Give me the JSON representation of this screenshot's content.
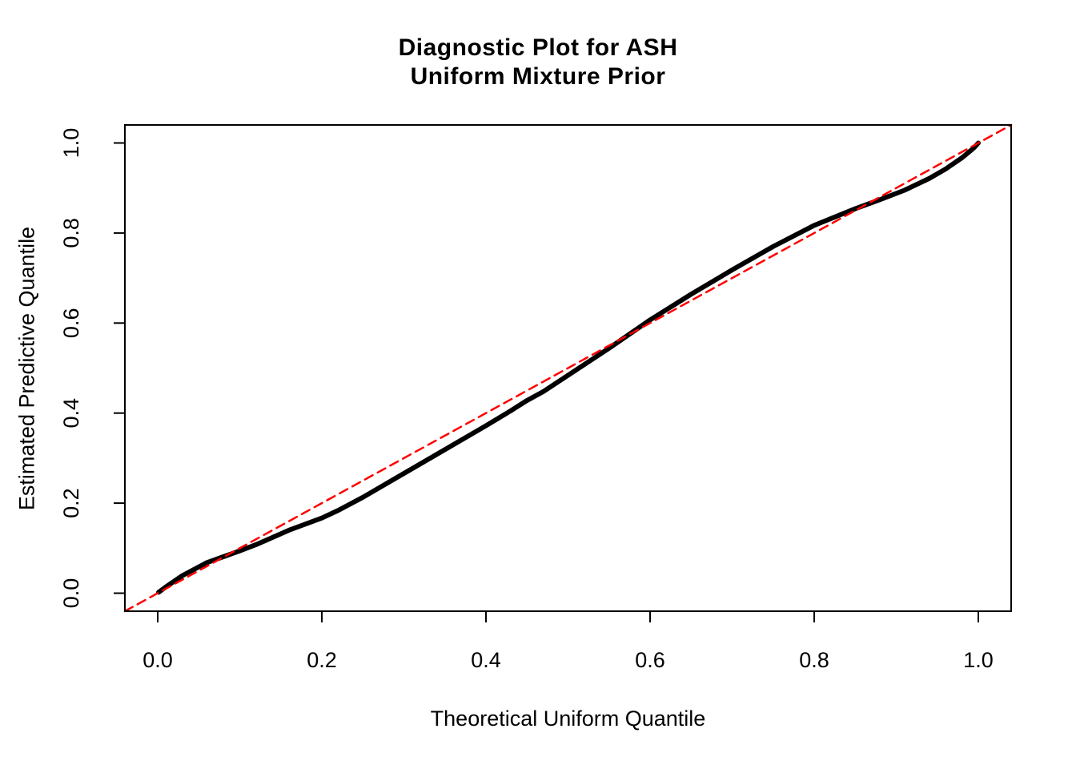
{
  "title": {
    "line1": "Diagnostic Plot for ASH",
    "line2": "Uniform Mixture Prior"
  },
  "colors": {
    "background": "#FFFFFF",
    "curve": "#000000",
    "reference_line": "#FF0000",
    "axis": "#000000",
    "text": "#000000"
  },
  "chart_data": {
    "type": "line",
    "title_line1": "Diagnostic Plot for ASH",
    "title_line2": "Uniform Mixture Prior",
    "xlabel": "Theoretical Uniform Quantile",
    "ylabel": "Estimated Predictive Quantile",
    "xlim": [
      -0.04,
      1.04
    ],
    "ylim": [
      -0.04,
      1.04
    ],
    "grid": false,
    "legend": null,
    "x_ticks": {
      "values": [
        0,
        0.2,
        0.4,
        0.6,
        0.8,
        1.0
      ],
      "labels": [
        "0.0",
        "0.2",
        "0.4",
        "0.6",
        "0.8",
        "1.0"
      ]
    },
    "y_ticks": {
      "values": [
        0,
        0.2,
        0.4,
        0.6,
        0.8,
        1.0
      ],
      "labels": [
        "0.0",
        "0.2",
        "0.4",
        "0.6",
        "0.8",
        "1.0"
      ]
    },
    "series": [
      {
        "name": "estimated_vs_theoretical_quantiles",
        "type": "line",
        "style": "solid",
        "color": "#000000",
        "line_width": 6,
        "x": [
          0.001,
          0.01,
          0.03,
          0.06,
          0.08,
          0.1,
          0.12,
          0.16,
          0.2,
          0.22,
          0.25,
          0.3,
          0.35,
          0.4,
          0.43,
          0.45,
          0.47,
          0.5,
          0.55,
          0.6,
          0.65,
          0.7,
          0.75,
          0.8,
          0.85,
          0.88,
          0.91,
          0.94,
          0.96,
          0.98,
          0.99,
          0.995,
          1.0
        ],
        "y": [
          0.002,
          0.014,
          0.039,
          0.068,
          0.081,
          0.094,
          0.108,
          0.14,
          0.167,
          0.184,
          0.213,
          0.266,
          0.319,
          0.372,
          0.405,
          0.428,
          0.448,
          0.484,
          0.544,
          0.607,
          0.664,
          0.718,
          0.77,
          0.817,
          0.854,
          0.874,
          0.895,
          0.921,
          0.942,
          0.967,
          0.982,
          0.99,
          1.0
        ]
      },
      {
        "name": "identity_reference_line",
        "type": "line",
        "style": "dashed",
        "color": "#FF0000",
        "line_width": 2.5,
        "x": [
          -0.04,
          1.04
        ],
        "y": [
          -0.04,
          1.04
        ]
      }
    ]
  }
}
